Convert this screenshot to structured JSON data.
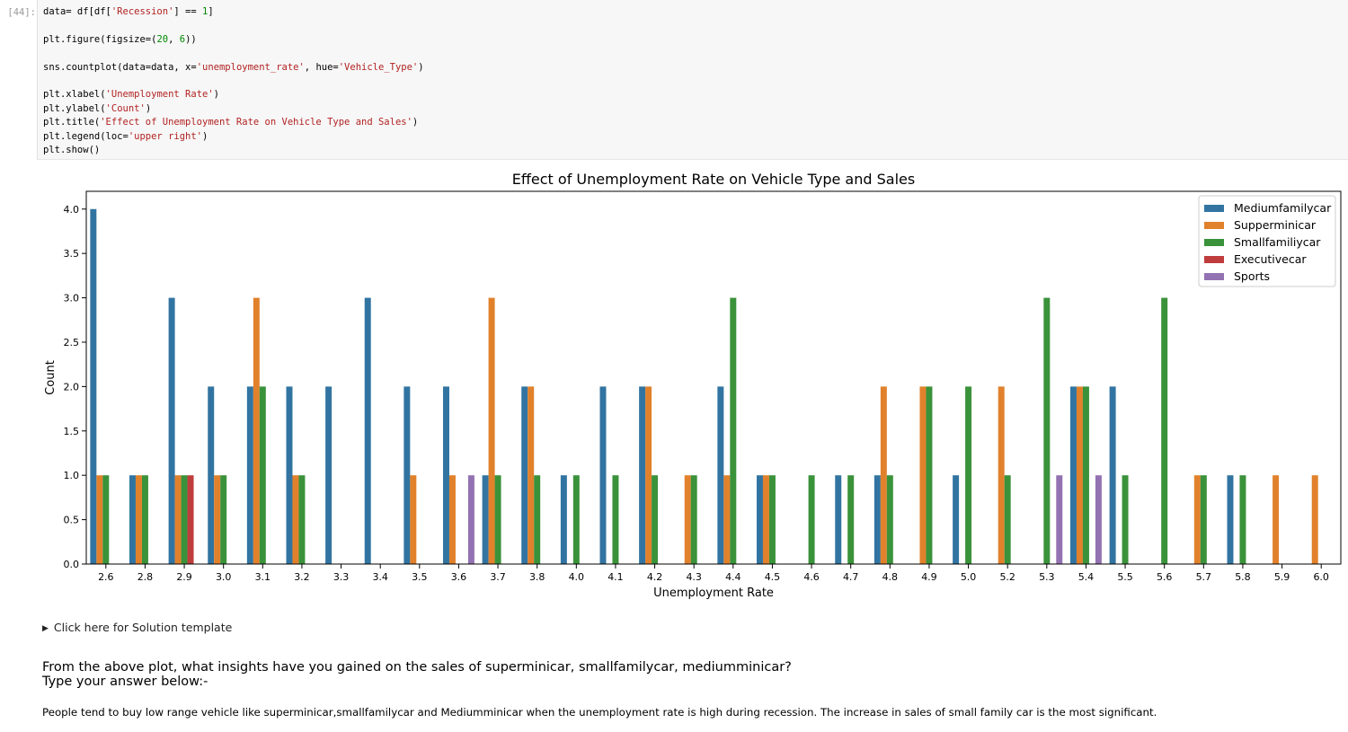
{
  "notebook": {
    "cell_prompt": "[44]:",
    "code": {
      "line1_a": "data= df[df[",
      "line1_str": "'Recession'",
      "line1_b": "] == ",
      "line1_num": "1",
      "line1_c": "]",
      "line2_a": "plt.figure(figsize=(",
      "line2_n1": "20",
      "line2_b": ", ",
      "line2_n2": "6",
      "line2_c": "))",
      "line3_a": "sns.countplot(data=data, x=",
      "line3_s1": "'unemployment_rate'",
      "line3_b": ", hue=",
      "line3_s2": "'Vehicle_Type'",
      "line3_c": ")",
      "line4_a": "plt.xlabel(",
      "line4_s": "'Unemployment Rate'",
      "line4_c": ")",
      "line5_a": "plt.ylabel(",
      "line5_s": "'Count'",
      "line5_c": ")",
      "line6_a": "plt.title(",
      "line6_s": "'Effect of Unemployment Rate on Vehicle Type and Sales'",
      "line6_c": ")",
      "line7_a": "plt.legend(loc=",
      "line7_s": "'upper right'",
      "line7_c": ")",
      "line8": "plt.show()"
    },
    "solution_toggle": "Click here for Solution template",
    "question_line1": "From the above plot, what insights have you gained on the sales of superminicar, smallfamilycar, mediumminicar?",
    "question_line2": "Type your answer below:-",
    "answer": "People tend to buy low range vehicle like superminicar,smallfamilycar and Mediumminicar when the unemployment rate is high during recession. The increase in sales of small family car is the most significant."
  },
  "chart_data": {
    "type": "bar",
    "title": "Effect of Unemployment Rate on Vehicle Type and Sales",
    "xlabel": "Unemployment Rate",
    "ylabel": "Count",
    "ylim": [
      0,
      4.2
    ],
    "yticks": [
      "0.0",
      "0.5",
      "1.0",
      "1.5",
      "2.0",
      "2.5",
      "3.0",
      "3.5",
      "4.0"
    ],
    "grid": false,
    "legend_position": "upper right",
    "categories": [
      "2.6",
      "2.8",
      "2.9",
      "3.0",
      "3.1",
      "3.2",
      "3.3",
      "3.4",
      "3.5",
      "3.6",
      "3.7",
      "3.8",
      "4.0",
      "4.1",
      "4.2",
      "4.3",
      "4.4",
      "4.5",
      "4.6",
      "4.7",
      "4.8",
      "4.9",
      "5.0",
      "5.2",
      "5.3",
      "5.4",
      "5.5",
      "5.6",
      "5.7",
      "5.8",
      "5.9",
      "6.0"
    ],
    "series": [
      {
        "name": "Mediumfamilycar",
        "color": "#3274a1",
        "values": [
          4,
          1,
          3,
          2,
          2,
          2,
          2,
          3,
          2,
          2,
          1,
          2,
          1,
          2,
          2,
          0,
          2,
          1,
          0,
          1,
          1,
          0,
          1,
          0,
          0,
          2,
          2,
          0,
          0,
          1,
          0,
          0
        ]
      },
      {
        "name": "Supperminicar",
        "color": "#e1812c",
        "values": [
          1,
          1,
          1,
          1,
          3,
          1,
          0,
          0,
          1,
          1,
          3,
          2,
          0,
          0,
          2,
          1,
          1,
          1,
          0,
          0,
          2,
          2,
          0,
          2,
          0,
          2,
          0,
          0,
          1,
          0,
          1,
          1
        ]
      },
      {
        "name": "Smallfamiliycar",
        "color": "#3a923a",
        "values": [
          1,
          1,
          1,
          1,
          2,
          1,
          0,
          0,
          0,
          0,
          1,
          1,
          1,
          1,
          1,
          1,
          3,
          1,
          1,
          1,
          1,
          2,
          2,
          1,
          3,
          2,
          1,
          3,
          1,
          1,
          0,
          0
        ]
      },
      {
        "name": "Executivecar",
        "color": "#c03d3e",
        "values": [
          0,
          0,
          1,
          0,
          0,
          0,
          0,
          0,
          0,
          0,
          0,
          0,
          0,
          0,
          0,
          0,
          0,
          0,
          0,
          0,
          0,
          0,
          0,
          0,
          0,
          0,
          0,
          0,
          0,
          0,
          0,
          0
        ]
      },
      {
        "name": "Sports",
        "color": "#9372b2",
        "values": [
          0,
          0,
          0,
          0,
          0,
          0,
          0,
          0,
          0,
          1,
          0,
          0,
          0,
          0,
          0,
          0,
          0,
          0,
          0,
          0,
          0,
          0,
          0,
          0,
          1,
          1,
          0,
          0,
          0,
          0,
          0,
          0
        ]
      }
    ]
  }
}
